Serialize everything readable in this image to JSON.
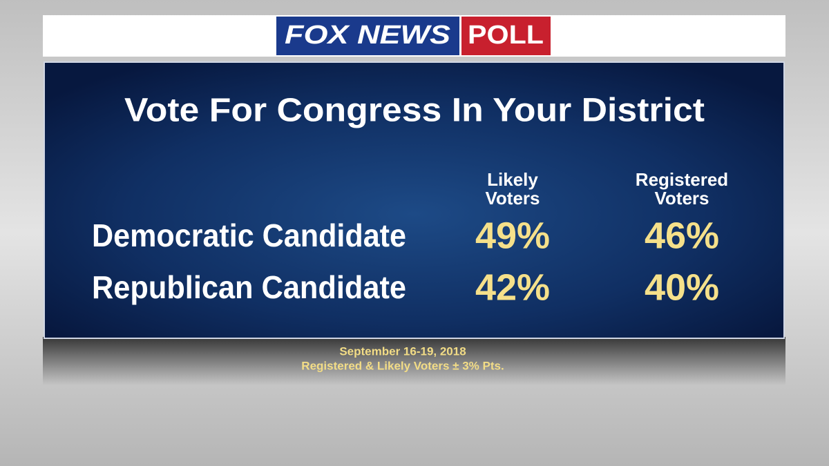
{
  "header": {
    "logo_left": "FOX NEWS",
    "logo_right": "POLL"
  },
  "title": "Vote For Congress In Your District",
  "table": {
    "columns": [
      [
        "Likely",
        "Voters"
      ],
      [
        "Registered",
        "Voters"
      ]
    ],
    "rows": [
      [
        "Democratic Candidate",
        "49%",
        "46%"
      ],
      [
        "Republican Candidate",
        "42%",
        "40%"
      ]
    ]
  },
  "footer": {
    "date": "September 16-19, 2018",
    "note": "Registered & Likely Voters ± 3% Pts."
  }
}
